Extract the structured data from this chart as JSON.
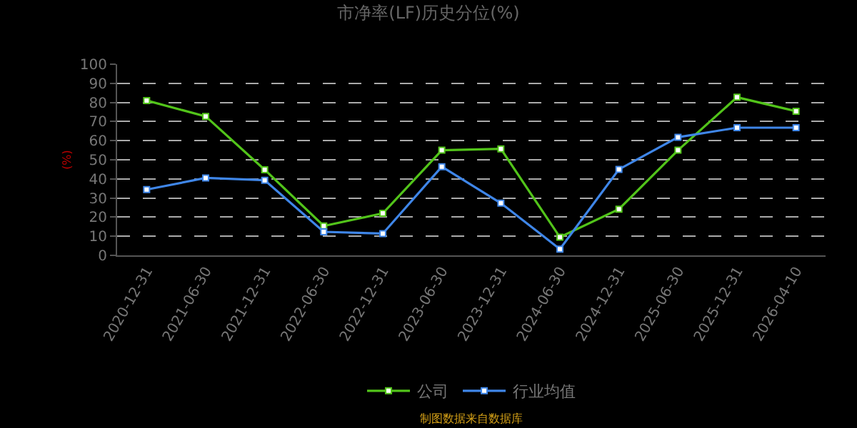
{
  "chart_data": {
    "type": "line",
    "title": "市净率(LF)历史分位(%)",
    "ylabel": "(%)",
    "categories": [
      "2020-12-31",
      "2021-06-30",
      "2021-12-31",
      "2022-06-30",
      "2022-12-31",
      "2023-06-30",
      "2023-12-31",
      "2024-06-30",
      "2024-12-31",
      "2025-06-30",
      "2025-12-31",
      "2026-04-10"
    ],
    "series": [
      {
        "name": "公司",
        "color": "#52c41a",
        "values": [
          81,
          72.7,
          44.8,
          15.4,
          22,
          55,
          55.7,
          9.5,
          24.2,
          55,
          82.7,
          75.4
        ]
      },
      {
        "name": "行业均值",
        "color": "#3f86e8",
        "values": [
          34.4,
          40.5,
          39.3,
          12.3,
          11.4,
          46.4,
          27.3,
          3.3,
          45,
          61.8,
          66.8,
          66.8
        ]
      }
    ],
    "ylim": [
      0,
      100
    ],
    "yticks": [
      0,
      10,
      20,
      30,
      40,
      50,
      60,
      70,
      80,
      90,
      100
    ],
    "grid": "y",
    "legend": "bottom",
    "marker": "square",
    "line_style": "solid",
    "annotations": [
      "制图数据来自数据库"
    ]
  }
}
